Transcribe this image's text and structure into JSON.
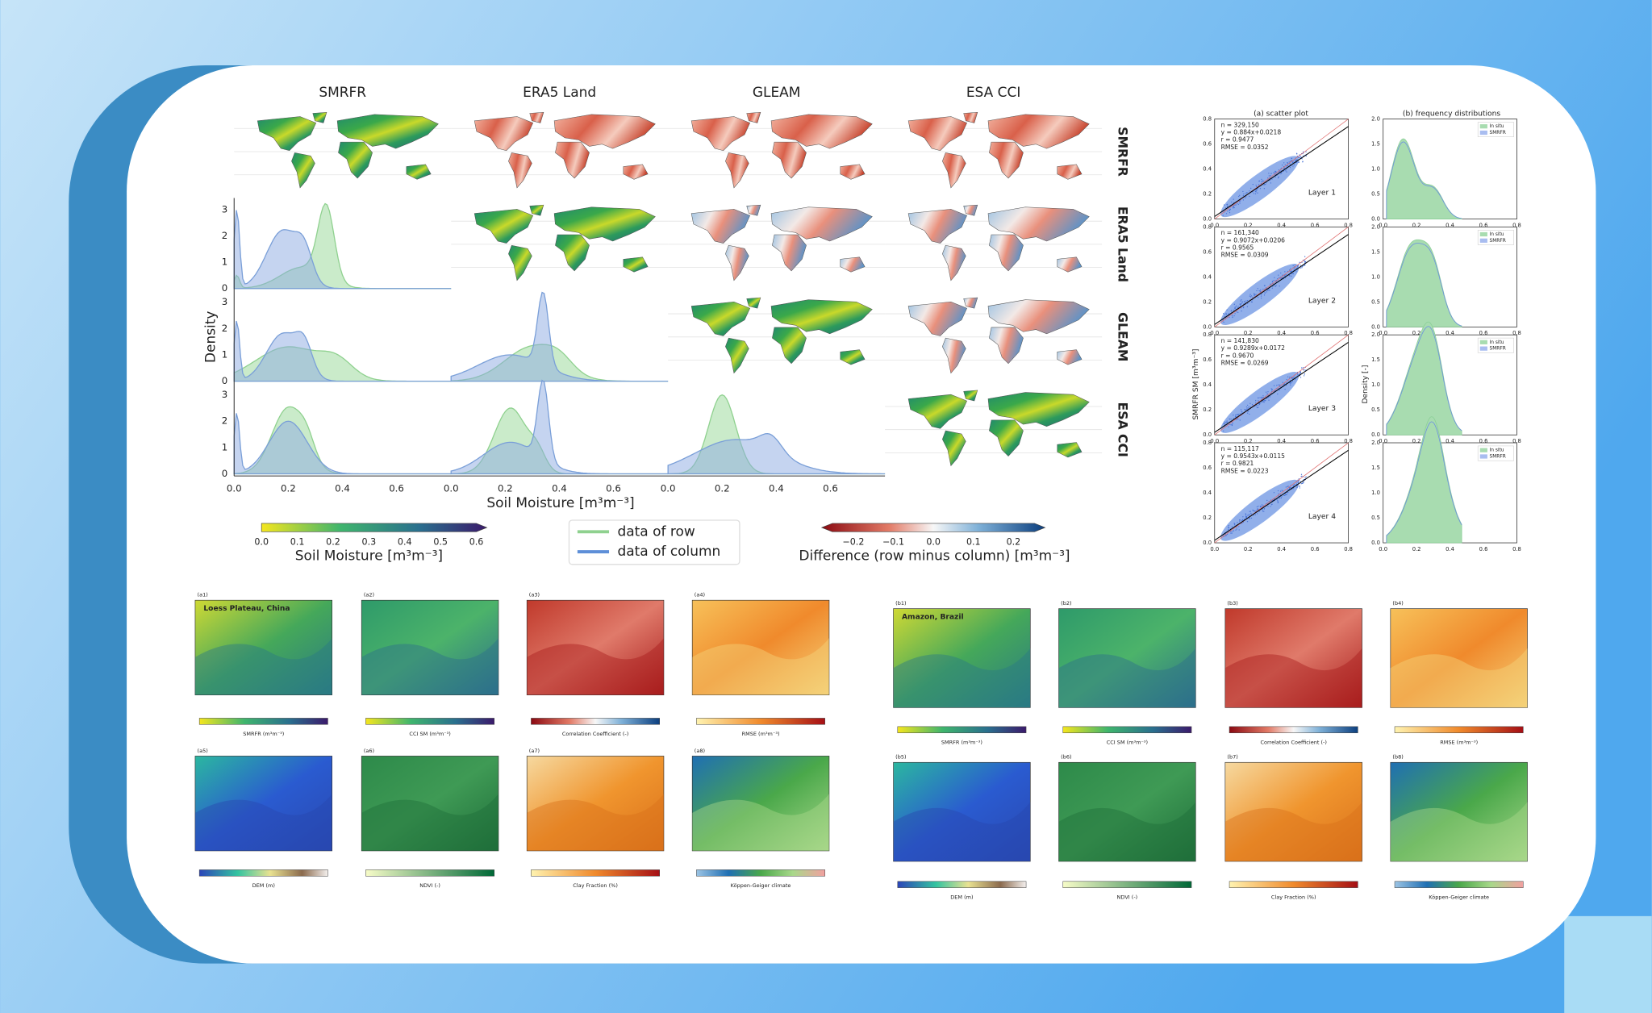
{
  "figure1": {
    "columns": [
      "SMRFR",
      "ERA5 Land",
      "GLEAM",
      "ESA CCI"
    ],
    "rows": [
      "SMRFR",
      "ERA5 Land",
      "GLEAM",
      "ESA CCI"
    ],
    "y_axis_label": "Density",
    "y_ticks": [
      "0",
      "1",
      "2",
      "3"
    ],
    "x_ticks": [
      "0.0",
      "0.2",
      "0.4",
      "0.6"
    ],
    "x_axis_label": "Soil Moisture [m³m⁻³]",
    "colorbar_sm": {
      "ticks": [
        "0.0",
        "0.1",
        "0.2",
        "0.3",
        "0.4",
        "0.5",
        "0.6"
      ],
      "label": "Soil Moisture [m³m⁻³]"
    },
    "legend": [
      "data of row",
      "data of column"
    ],
    "colorbar_diff": {
      "ticks": [
        "−0.2",
        "−0.1",
        "0.0",
        "0.1",
        "0.2"
      ],
      "label": "Difference (row minus column) [m³m⁻³]"
    }
  },
  "figure2": {
    "titles": [
      "(a) scatter plot",
      "(b) frequency distributions"
    ],
    "panels": [
      {
        "stats": [
          "n = 329,150",
          "y = 0.884x+0.0218",
          "r = 0.9477",
          "RMSE = 0.0352"
        ],
        "layer": "Layer 1"
      },
      {
        "stats": [
          "n = 161,340",
          "y = 0.9072x+0.0206",
          "r = 0.9565",
          "RMSE = 0.0309"
        ],
        "layer": "Layer 2"
      },
      {
        "stats": [
          "n = 141,830",
          "y = 0.9289x+0.0172",
          "r = 0.9670",
          "RMSE = 0.0269"
        ],
        "layer": "Layer 3"
      },
      {
        "stats": [
          "n = 115,117",
          "y = 0.9543x+0.0115",
          "r = 0.9821",
          "RMSE = 0.0223"
        ],
        "layer": "Layer 4"
      }
    ],
    "scatter_y_label": "SMRFR SM [m³m⁻³]",
    "density_y_label": "Density [-]",
    "legend": [
      "In situ",
      "SMRFR"
    ],
    "scatter_ticks": [
      "0.0",
      "0.2",
      "0.4",
      "0.6",
      "0.8"
    ],
    "density_ticks": [
      "0.0",
      "0.5",
      "1.0",
      "1.5",
      "2.0"
    ]
  },
  "figure3": {
    "region": "Loess Plateau, China",
    "panels": [
      "(a1)",
      "(a2)",
      "(a3)",
      "(a4)",
      "(a5)",
      "(a6)",
      "(a7)",
      "(a8)"
    ],
    "colorbars": [
      "SMRFR (m³m⁻³)",
      "CCI SM (m³m⁻³)",
      "Correlation Coefficient (-)",
      "RMSE (m³m⁻³)",
      "DEM (m)",
      "NDVI (-)",
      "Clay Fraction (%)",
      "Köppen-Geiger climate"
    ]
  },
  "figure4": {
    "region": "Amazon, Brazil",
    "panels": [
      "(b1)",
      "(b2)",
      "(b3)",
      "(b4)",
      "(b5)",
      "(b6)",
      "(b7)",
      "(b8)"
    ],
    "colorbars": [
      "SMRFR (m³m⁻³)",
      "CCI SM (m³m⁻³)",
      "Correlation Coefficient (-)",
      "RMSE (m³m⁻³)",
      "DEM (m)",
      "NDVI (-)",
      "Clay Fraction (%)",
      "Köppen-Geiger climate"
    ]
  }
}
